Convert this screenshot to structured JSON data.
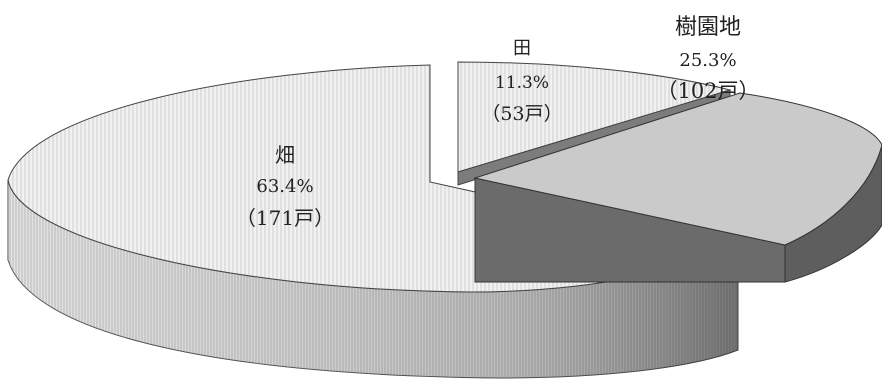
{
  "chart_data": {
    "type": "pie",
    "style": "3d-exploded",
    "slices": [
      {
        "label": "畑",
        "value": 63.4,
        "percent_label": "63.4%",
        "count_label": "（171戸）",
        "color": "#e4e4e4"
      },
      {
        "label": "田",
        "value": 11.3,
        "percent_label": "11.3%",
        "count_label": "（53戸）",
        "color": "#ececec"
      },
      {
        "label": "樹園地",
        "value": 25.3,
        "percent_label": "25.3%",
        "count_label": "（102戸）",
        "color": "#c8c8c8"
      }
    ],
    "colors": {
      "dark_face": "#6e6e6e",
      "outline": "#333333"
    }
  }
}
